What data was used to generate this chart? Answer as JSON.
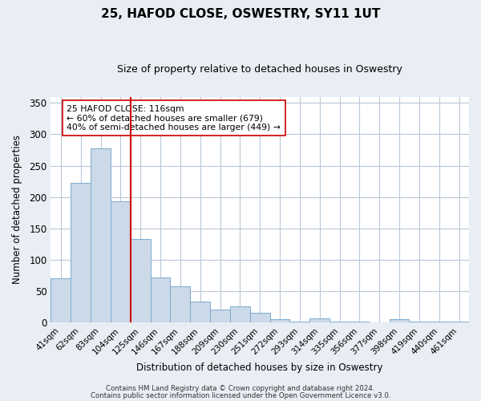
{
  "title": "25, HAFOD CLOSE, OSWESTRY, SY11 1UT",
  "subtitle": "Size of property relative to detached houses in Oswestry",
  "xlabel": "Distribution of detached houses by size in Oswestry",
  "ylabel": "Number of detached properties",
  "categories": [
    "41sqm",
    "62sqm",
    "83sqm",
    "104sqm",
    "125sqm",
    "146sqm",
    "167sqm",
    "188sqm",
    "209sqm",
    "230sqm",
    "251sqm",
    "272sqm",
    "293sqm",
    "314sqm",
    "335sqm",
    "356sqm",
    "377sqm",
    "398sqm",
    "419sqm",
    "440sqm",
    "461sqm"
  ],
  "values": [
    70,
    223,
    278,
    193,
    133,
    72,
    58,
    33,
    21,
    25,
    15,
    5,
    1,
    6,
    1,
    1,
    0,
    5,
    1,
    1,
    1
  ],
  "bar_color": "#ccd9e8",
  "bar_edge_color": "#7baacf",
  "vline_color": "#cc0000",
  "annotation_line1": "25 HAFOD CLOSE: 116sqm",
  "annotation_line2": "← 60% of detached houses are smaller (679)",
  "annotation_line3": "40% of semi-detached houses are larger (449) →",
  "annotation_box_color": "#ffffff",
  "annotation_box_edge": "#cc0000",
  "ylim": [
    0,
    360
  ],
  "yticks": [
    0,
    50,
    100,
    150,
    200,
    250,
    300,
    350
  ],
  "footer1": "Contains HM Land Registry data © Crown copyright and database right 2024.",
  "footer2": "Contains public sector information licensed under the Open Government Licence v3.0.",
  "bg_color": "#e8eef4",
  "plot_bg_color": "#ffffff",
  "grid_color": "#b8c8d8",
  "title_fontsize": 11,
  "subtitle_fontsize": 9
}
